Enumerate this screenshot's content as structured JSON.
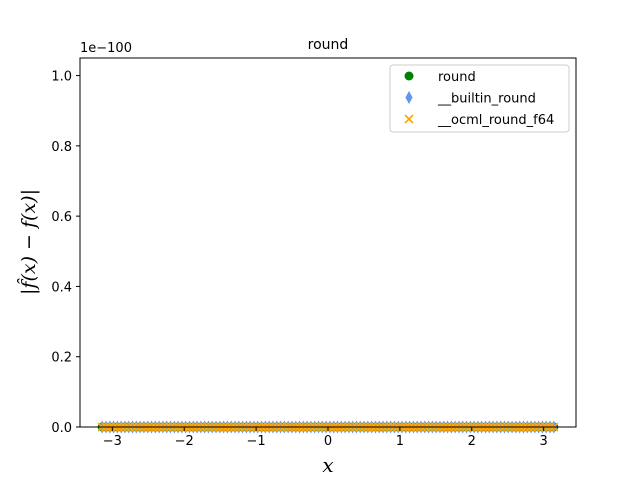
{
  "chart_data": {
    "type": "scatter",
    "title": "round",
    "xlabel": "x",
    "ylabel": "|f̂(x) − f(x)|",
    "y_offset_text": "1e−100",
    "xlim": [
      -3.45,
      3.45
    ],
    "ylim": [
      0,
      1.05
    ],
    "x_ticks": [
      -3,
      -2,
      -1,
      0,
      1,
      2,
      3
    ],
    "x_tick_labels": [
      "−3",
      "−2",
      "−1",
      "0",
      "1",
      "2",
      "3"
    ],
    "y_ticks": [
      0.0,
      0.2,
      0.4,
      0.6,
      0.8,
      1.0
    ],
    "y_tick_labels": [
      "0.0",
      "0.2",
      "0.4",
      "0.6",
      "0.8",
      "1.0"
    ],
    "x_range": [
      -3.14159,
      3.14159
    ],
    "grid": false,
    "legend_position": "top-right",
    "series": [
      {
        "name": "round",
        "marker": "circle",
        "color": "#008000",
        "y_value": 0
      },
      {
        "name": "__builtin_round",
        "marker": "thin_diamond",
        "color": "#6495ED",
        "y_value": 0
      },
      {
        "name": "__ocml_round_f64",
        "marker": "x",
        "color": "#FFA500",
        "y_value": 0
      }
    ]
  }
}
